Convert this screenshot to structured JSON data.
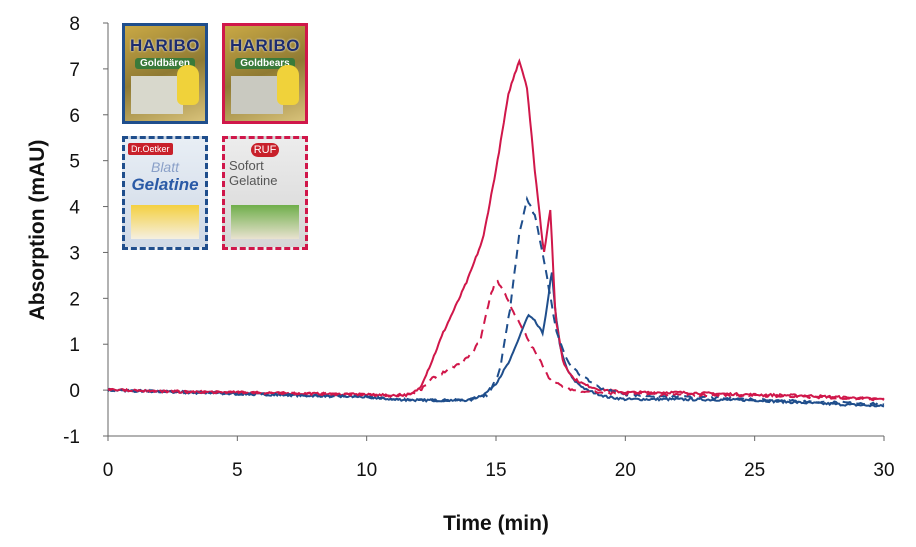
{
  "chart_data": {
    "type": "line",
    "title": "",
    "xlabel": "Time (min)",
    "ylabel": "Absorption (mAU)",
    "xlim": [
      0,
      30
    ],
    "ylim": [
      -1,
      8
    ],
    "xticks": [
      "0",
      "5",
      "10",
      "15",
      "20",
      "25",
      "30"
    ],
    "yticks": [
      "-1",
      "0",
      "1",
      "2",
      "3",
      "4",
      "5",
      "6",
      "7",
      "8"
    ],
    "grid": false,
    "legend": "product images top-left (border style/color matches line)",
    "series": [
      {
        "product": "HARIBO Goldbären",
        "color": "#1f4e8c",
        "style": "solid",
        "x": [
          0,
          2,
          5,
          8,
          10,
          11,
          12,
          13,
          14,
          14.6,
          15,
          15.55,
          16,
          16.25,
          16.5,
          16.8,
          17,
          17.15,
          17.3,
          17.5,
          17.75,
          18,
          18.5,
          19.3,
          20,
          22,
          25,
          27,
          30
        ],
        "y": [
          0,
          -0.03,
          -0.08,
          -0.12,
          -0.15,
          -0.2,
          -0.22,
          -0.22,
          -0.22,
          -0.07,
          0.15,
          0.65,
          1.3,
          1.63,
          1.5,
          1.24,
          1.9,
          2.6,
          1.7,
          0.87,
          0.45,
          0.22,
          0,
          -0.15,
          -0.2,
          -0.2,
          -0.22,
          -0.28,
          -0.35
        ]
      },
      {
        "product": "HARIBO Goldbears",
        "color": "#d0174a",
        "style": "solid",
        "x": [
          0,
          2,
          5,
          8,
          10,
          11,
          11.7,
          12.06,
          12.5,
          12.95,
          13.5,
          13.9,
          14.5,
          15,
          15.5,
          15.9,
          16.2,
          16.5,
          16.85,
          17.1,
          17.3,
          17.6,
          18,
          18.5,
          19,
          20,
          22,
          25,
          27,
          30
        ],
        "y": [
          0.02,
          -0.03,
          -0.05,
          -0.08,
          -0.1,
          -0.12,
          -0.1,
          0.05,
          0.6,
          1.24,
          1.9,
          2.4,
          3.3,
          4.8,
          6.5,
          7.19,
          6.6,
          4.8,
          2.98,
          3.94,
          1.6,
          0.6,
          0.25,
          0.1,
          0.02,
          -0.05,
          -0.05,
          -0.1,
          -0.12,
          -0.2
        ]
      },
      {
        "product": "Dr. Oetker Blatt Gelatine",
        "color": "#1f4e8c",
        "style": "dashed",
        "x": [
          0,
          2,
          5,
          8,
          10,
          11,
          12,
          13,
          14,
          14.7,
          15.15,
          15.55,
          15.9,
          16.2,
          16.5,
          16.8,
          17.05,
          17.35,
          17.75,
          18.2,
          19,
          20,
          22,
          25,
          27,
          30
        ],
        "y": [
          0,
          -0.03,
          -0.08,
          -0.12,
          -0.15,
          -0.2,
          -0.22,
          -0.22,
          -0.2,
          -0.1,
          0.43,
          1.8,
          3.4,
          4.16,
          3.8,
          3.0,
          2.2,
          1.25,
          0.65,
          0.35,
          0.05,
          -0.1,
          -0.15,
          -0.2,
          -0.25,
          -0.3
        ]
      },
      {
        "product": "RUF Sofort Gelatine",
        "color": "#d0174a",
        "style": "dashed",
        "x": [
          0,
          2,
          5,
          8,
          10,
          11,
          12,
          12.55,
          13.5,
          14,
          14.4,
          14.8,
          15.03,
          15.3,
          15.65,
          16,
          16.4,
          16.8,
          17.1,
          17.5,
          18,
          19,
          20,
          22,
          25,
          27,
          30
        ],
        "y": [
          0.02,
          -0.03,
          -0.05,
          -0.08,
          -0.1,
          -0.12,
          -0.05,
          0.26,
          0.55,
          0.75,
          1.1,
          2.1,
          2.4,
          2.15,
          1.74,
          1.35,
          0.94,
          0.55,
          0.22,
          0.1,
          0,
          -0.05,
          -0.08,
          -0.1,
          -0.12,
          -0.15,
          -0.2
        ]
      }
    ]
  },
  "legend_images": [
    {
      "product": "HARIBO Goldbären",
      "line1": "HARIBO",
      "line2": "Goldbären",
      "border_color": "#1f4e8c",
      "border_style": "solid"
    },
    {
      "product": "HARIBO Goldbears",
      "line1": "HARIBO",
      "line2": "Goldbears",
      "border_color": "#d0174a",
      "border_style": "solid"
    },
    {
      "product": "Dr. Oetker Blatt Gelatine",
      "logo": "Dr.Oetker",
      "line1": "Blatt",
      "line2": "Gelatine",
      "border_color": "#1f4e8c",
      "border_style": "dashed"
    },
    {
      "product": "RUF Sofort Gelatine",
      "logo": "RUF",
      "line1": "Sofort",
      "line2": "Gelatine",
      "border_color": "#d0174a",
      "border_style": "dashed"
    }
  ]
}
